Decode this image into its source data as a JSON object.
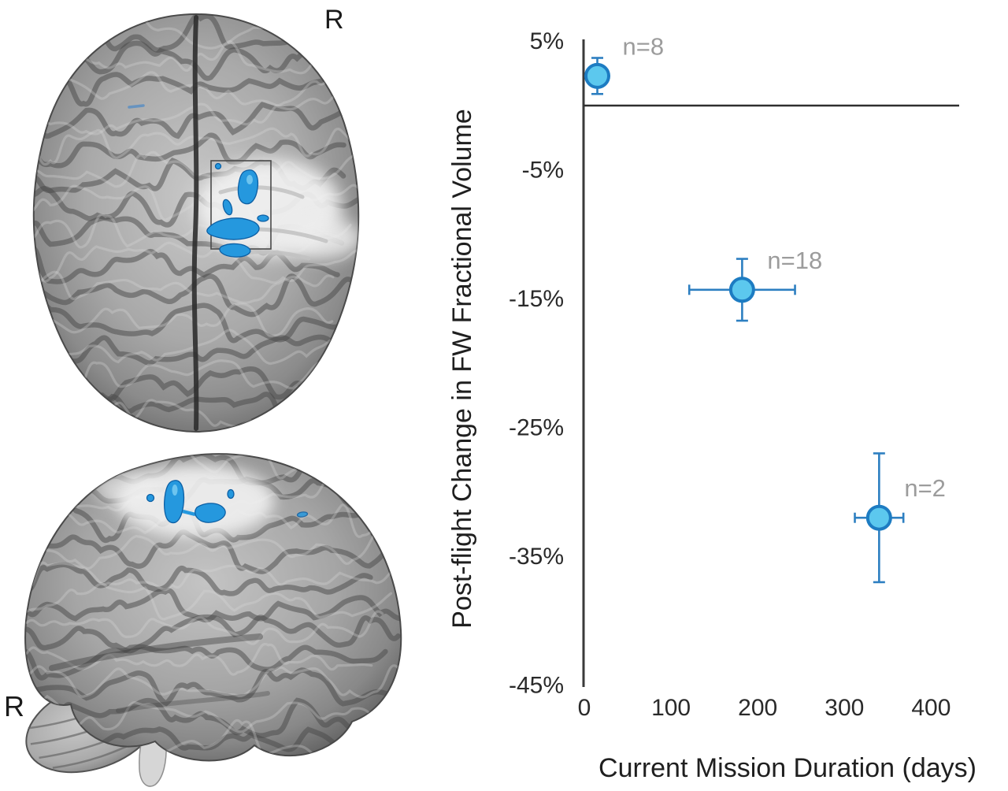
{
  "figure": {
    "background": "#ffffff",
    "panels": {
      "brain_dorsal": {
        "name": "brain-dorsal-view",
        "orientation_label": "R",
        "cluster_color": "#2598de",
        "roi_box": true
      },
      "brain_lateral": {
        "name": "brain-lateral-view",
        "orientation_label": "R",
        "cluster_color": "#2598de"
      }
    }
  },
  "chart_data": {
    "type": "scatter",
    "title": "",
    "xlabel": "Current Mission Duration (days)",
    "ylabel": "Post-flight Change in FW Fractional Volume",
    "x_unit": "days",
    "y_unit": "percent",
    "xlim": [
      0,
      432
    ],
    "ylim": [
      -45,
      5
    ],
    "grid": false,
    "legend": false,
    "zero_line": true,
    "x_ticks": [
      {
        "value": 0,
        "label": "0"
      },
      {
        "value": 100,
        "label": "100"
      },
      {
        "value": 200,
        "label": "200"
      },
      {
        "value": 300,
        "label": "300"
      },
      {
        "value": 400,
        "label": "400"
      }
    ],
    "y_ticks": [
      {
        "value": 5,
        "label": "5%"
      },
      {
        "value": -5,
        "label": "-5%"
      },
      {
        "value": -15,
        "label": "-15%"
      },
      {
        "value": -25,
        "label": "-25%"
      },
      {
        "value": -35,
        "label": "-35%"
      },
      {
        "value": -45,
        "label": "-45%"
      }
    ],
    "points": [
      {
        "label": "n=8",
        "x": 15,
        "y": 2.3,
        "xerr": 0,
        "yerr": 1.4
      },
      {
        "label": "n=18",
        "x": 182,
        "y": -14.3,
        "xerr": 61,
        "yerr": 2.4
      },
      {
        "label": "n=2",
        "x": 340,
        "y": -32.0,
        "xerr": 28,
        "yerr": 5.0
      }
    ],
    "style": {
      "marker_fill": "#5cc8ee",
      "marker_stroke": "#1d7cc2",
      "error_color": "#2d7fc1",
      "axis_color": "#3a3a3a",
      "tick_text_color": "#2a2a2a",
      "annotation_color": "#9c9c9c"
    }
  }
}
